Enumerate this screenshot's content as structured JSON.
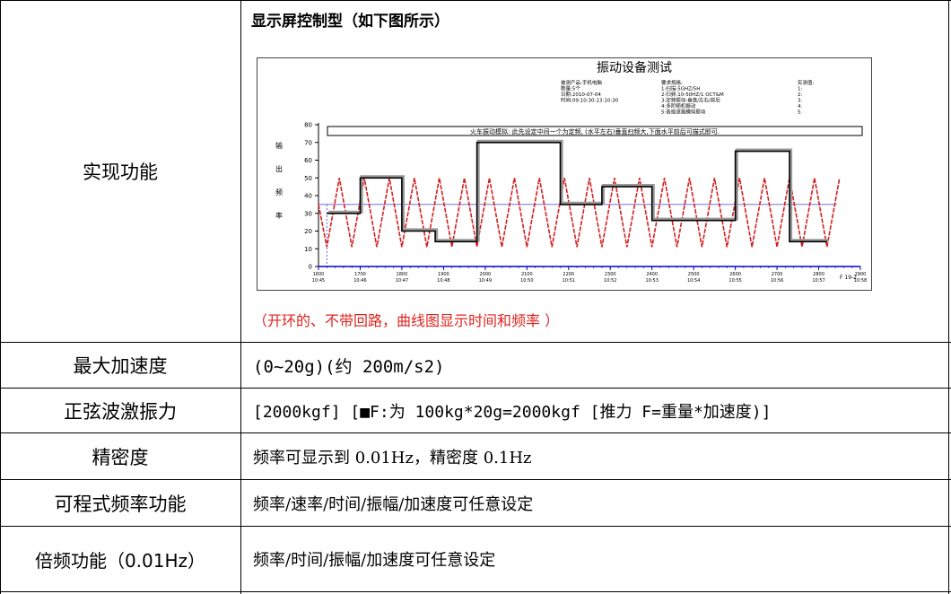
{
  "rows": [
    {
      "label": "实现功能"
    },
    {
      "label": "最大加速度",
      "value": "(0~20g)(约 200m/s2)"
    },
    {
      "label": "正弦波激振力",
      "value": "[2000kgf]        [■F:为 100kg*20g=2000kgf  [推力 F=重量*加速度)]"
    },
    {
      "label": "精密度",
      "value": "频率可显示到 0.01Hz，精密度 0.1Hz"
    },
    {
      "label": "可程式频率功能",
      "value": "频率/速率/时间/振幅/加速度可任意设定"
    },
    {
      "label": "倍频功能（0.01Hz）",
      "value": "频率/时间/振幅/加速度可任意设定"
    }
  ],
  "figure": {
    "heading": "显示屏控制型（如下图所示）",
    "caption": "（开环的、不带回路，曲线图显示时间和频率 ）"
  },
  "chart_data": {
    "type": "line",
    "title": "振动设备测试",
    "info_col1": [
      "被测产品:手机电脑",
      "数量:5个",
      "日期:2010-07-04",
      "时间:09:10:30-13:10:30"
    ],
    "info_col2": [
      "要求规格:",
      "1:扫描:5GHZ/5H",
      "2:扫频:10-50HZ/1 OCT&M",
      "3:定频振动:垂直/左右/前后",
      "4:多阶随机振动",
      "5:各级道路模拟振动"
    ],
    "info_col3": [
      "实测值:",
      "1:",
      "2:",
      "3.",
      "4.",
      "5."
    ],
    "annotation": "火车振动模拟: 此先设定中间一个为定频, (水平左右)垂直扫频大,下面水平前后可描式即可.",
    "ylabel": "输 出 频 率",
    "ylim": [
      0,
      80
    ],
    "y_ticks": [
      0,
      10,
      20,
      30,
      40,
      50,
      60,
      70,
      80
    ],
    "xlim": [
      1600,
      2900
    ],
    "x_ticks": [
      {
        "value": 1600,
        "label": "1600",
        "time": "10:45"
      },
      {
        "value": 1700,
        "label": "1700",
        "time": "10:46"
      },
      {
        "value": 1800,
        "label": "1800",
        "time": "10:47"
      },
      {
        "value": 1900,
        "label": "1900",
        "time": "10:48"
      },
      {
        "value": 2000,
        "label": "2000",
        "time": "10:49"
      },
      {
        "value": 2100,
        "label": "2100",
        "time": "10:50"
      },
      {
        "value": 2200,
        "label": "2200",
        "time": "10:51"
      },
      {
        "value": 2300,
        "label": "2300",
        "time": "10:52"
      },
      {
        "value": 2400,
        "label": "2400",
        "time": "10:53"
      },
      {
        "value": 2500,
        "label": "2500",
        "time": "10:54"
      },
      {
        "value": 2600,
        "label": "2600",
        "time": "10:55"
      },
      {
        "value": 2700,
        "label": "2700",
        "time": "10:56"
      },
      {
        "value": 2800,
        "label": "2800",
        "time": "10:57"
      },
      {
        "value": 2900,
        "label": "2900",
        "time": "10:58"
      }
    ],
    "corner_label": "F 19-2",
    "reference_level": 35,
    "series": [
      {
        "color": "#d42020",
        "style": "zigzag",
        "x": [
          1600,
          1620,
          1650,
          1680,
          1710,
          1740,
          1770,
          1800,
          1830,
          1860,
          1890,
          1920,
          1950,
          1980,
          2010,
          2040,
          2070,
          2100,
          2130,
          2160,
          2190,
          2220,
          2250,
          2280,
          2310,
          2340,
          2370,
          2400,
          2430,
          2460,
          2490,
          2520,
          2550,
          2580,
          2610,
          2640,
          2670,
          2700,
          2730,
          2760,
          2790,
          2820,
          2850
        ],
        "y": [
          35,
          11,
          50,
          11,
          50,
          11,
          50,
          11,
          50,
          11,
          50,
          11,
          50,
          11,
          50,
          11,
          50,
          11,
          50,
          11,
          50,
          11,
          50,
          11,
          50,
          11,
          50,
          11,
          50,
          11,
          50,
          11,
          50,
          11,
          50,
          11,
          50,
          11,
          50,
          11,
          50,
          11,
          50
        ]
      },
      {
        "color": "#000000",
        "style": "step",
        "x": [
          1620,
          1700,
          1700,
          1800,
          1800,
          1880,
          1880,
          1980,
          1980,
          2180,
          2180,
          2280,
          2280,
          2400,
          2400,
          2600,
          2600,
          2730,
          2730,
          2820
        ],
        "y": [
          30,
          30,
          50,
          50,
          20,
          20,
          14,
          14,
          70,
          70,
          35,
          35,
          45,
          45,
          26,
          26,
          65,
          65,
          14,
          14
        ]
      }
    ]
  }
}
